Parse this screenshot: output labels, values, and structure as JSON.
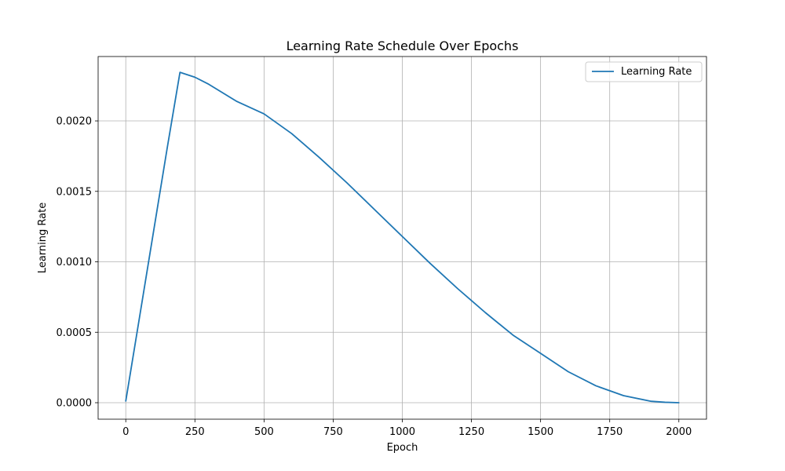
{
  "chart_data": {
    "type": "line",
    "title": "Learning Rate Schedule Over Epochs",
    "xlabel": "Epoch",
    "ylabel": "Learning Rate",
    "xlim": [
      -100,
      2100
    ],
    "ylim": [
      -0.000117,
      0.002457
    ],
    "x_ticks": [
      0,
      250,
      500,
      750,
      1000,
      1250,
      1500,
      1750,
      2000
    ],
    "x_tick_labels": [
      "0",
      "250",
      "500",
      "750",
      "1000",
      "1250",
      "1500",
      "1750",
      "2000"
    ],
    "y_ticks": [
      0,
      0.0005,
      0.001,
      0.0015,
      0.002
    ],
    "y_tick_labels": [
      "0.0000",
      "0.0005",
      "0.0010",
      "0.0015",
      "0.0020"
    ],
    "grid": true,
    "legend": {
      "position": "top-right",
      "entries": [
        "Learning Rate"
      ]
    },
    "colors": {
      "series": "#1f77b4"
    },
    "series": [
      {
        "name": "Learning Rate",
        "x": [
          0,
          50,
          100,
          150,
          196,
          250,
          300,
          350,
          400,
          500,
          600,
          700,
          800,
          900,
          1000,
          1100,
          1200,
          1300,
          1400,
          1500,
          1600,
          1700,
          1800,
          1900,
          1950,
          2000
        ],
        "values": [
          1.2e-05,
          0.00061,
          0.00121,
          0.00181,
          0.002345,
          0.00231,
          0.00226,
          0.0022,
          0.00214,
          0.00205,
          0.00191,
          0.00174,
          0.00156,
          0.00137,
          0.00118,
          0.00099,
          0.00081,
          0.00064,
          0.00048,
          0.00035,
          0.00022,
          0.00012,
          5e-05,
          1e-05,
          3e-06,
          0.0
        ]
      }
    ]
  }
}
